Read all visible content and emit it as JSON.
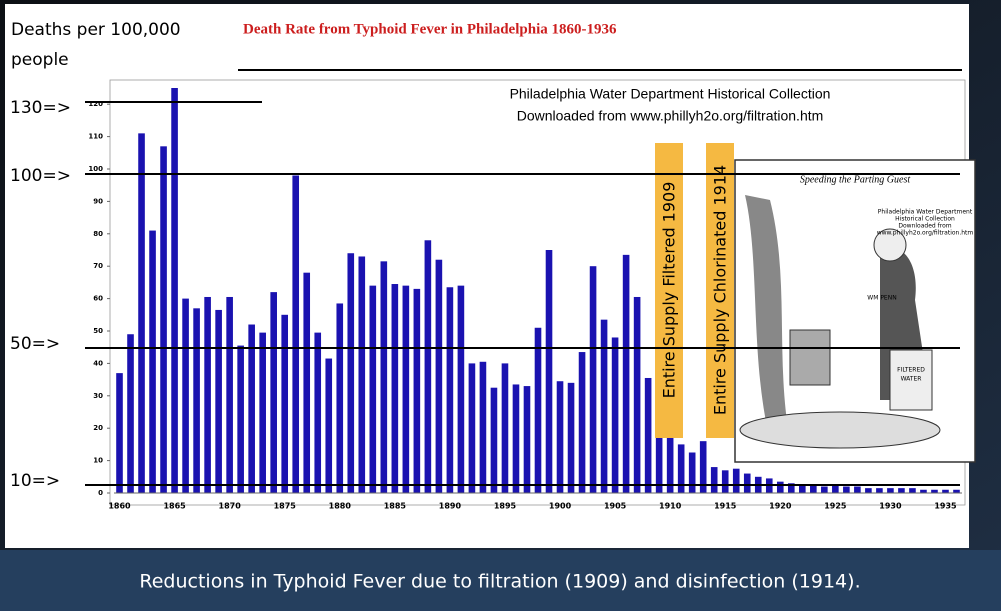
{
  "chart_data": {
    "type": "bar",
    "title": "Death Rate from Typhoid Fever in Philadelphia 1860-1936",
    "y_label": [
      "Deaths per 100,000",
      "people"
    ],
    "source_note": [
      "Philadelphia Water Department Historical Collection",
      "Downloaded from www.phillyh2o.org/filtration.htm"
    ],
    "annotations": [
      "Entire Supply Filtered 1909",
      "Entire Supply Chlorinated 1914"
    ],
    "overlay_labels": [
      "130=>",
      "100=>",
      "50=>",
      "10=>"
    ],
    "inset": {
      "title": "Speeding the Parting Guest",
      "lines": [
        "Philadelphia Water Department",
        "Historical Collection",
        "Downloaded from",
        "www.phillyh2o.org/filtration.htm"
      ],
      "sign": "WM PENN",
      "jar": [
        "FILTERED",
        "WATER"
      ]
    },
    "categories": [
      1860,
      null,
      null,
      null,
      null,
      1865,
      null,
      null,
      null,
      null,
      1870,
      null,
      null,
      null,
      null,
      1875,
      null,
      null,
      null,
      null,
      1880,
      null,
      null,
      null,
      null,
      1885,
      null,
      null,
      null,
      null,
      1890,
      null,
      null,
      null,
      null,
      1895,
      null,
      null,
      null,
      null,
      1900,
      null,
      null,
      null,
      null,
      1905,
      null,
      null,
      null,
      null,
      1910,
      null,
      null,
      null,
      null,
      1915,
      null,
      null,
      null,
      null,
      1920,
      null,
      null,
      null,
      null,
      1925,
      null,
      null,
      null,
      null,
      1930,
      null,
      null,
      null,
      null,
      1935,
      null
    ],
    "values": [
      37,
      49,
      111,
      81,
      107,
      125,
      60,
      57,
      60.5,
      56.5,
      60.5,
      45.5,
      52,
      49.5,
      62,
      55,
      98,
      68,
      49.5,
      41.5,
      58.5,
      74,
      73,
      64,
      71.5,
      64.5,
      64,
      63,
      78,
      72,
      63.5,
      64,
      40,
      40.5,
      32.5,
      40,
      33.5,
      33,
      51,
      75,
      34.5,
      34,
      43.5,
      70,
      53.5,
      48,
      73.5,
      60.5,
      35.5,
      21.5,
      18,
      15,
      12.5,
      16,
      8,
      7,
      7.5,
      6,
      5,
      4.5,
      3.5,
      3,
      2.5,
      2.5,
      2,
      2.5,
      2,
      2,
      1.5,
      1.5,
      1.5,
      1.5,
      1.5,
      1,
      1,
      1,
      1
    ],
    "color": "#1a12b0",
    "ylim": [
      0,
      125
    ],
    "yticks": [
      0,
      10,
      20,
      30,
      40,
      50,
      60,
      70,
      80,
      90,
      100,
      110,
      120
    ]
  },
  "caption": "Reductions in Typhoid Fever due to filtration (1909) and disinfection (1914)."
}
